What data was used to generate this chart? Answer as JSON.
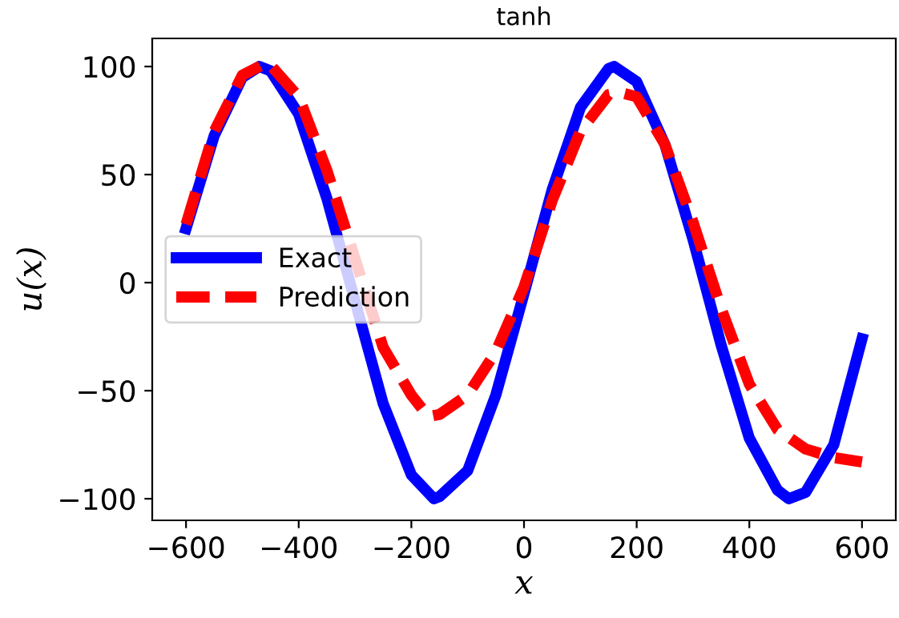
{
  "chart_data": {
    "type": "line",
    "title": "tanh",
    "xlabel": "x",
    "ylabel": "u(x)",
    "xlim": [
      -660,
      660
    ],
    "xticks": [
      -600,
      -400,
      -200,
      0,
      200,
      400,
      600
    ],
    "ylim": [
      -110,
      113
    ],
    "yticks": [
      -100,
      -50,
      0,
      50,
      100
    ],
    "grid": false,
    "legend": "center left",
    "series": [
      {
        "name": "Exact",
        "color": "#0000ff",
        "line_style": "solid",
        "x": [
          -600,
          -550,
          -500,
          -470,
          -450,
          -400,
          -350,
          -250,
          -200,
          -160,
          -150,
          -100,
          -50,
          0,
          50,
          100,
          150,
          160,
          200,
          250,
          300,
          350,
          400,
          450,
          470,
          500,
          550,
          600
        ],
        "values": [
          25,
          68,
          95,
          100,
          98,
          78,
          39,
          -56,
          -89,
          -100,
          -99,
          -87,
          -52,
          -5,
          43,
          81,
          99,
          100,
          93,
          64,
          20,
          -29,
          -72,
          -96,
          -100,
          -97,
          -75,
          -26
        ]
      },
      {
        "name": "Prediction",
        "color": "#ff0000",
        "line_style": "dashed",
        "x": [
          -600,
          -550,
          -500,
          -455,
          -400,
          -350,
          -250,
          -200,
          -170,
          -150,
          -100,
          -50,
          0,
          50,
          100,
          150,
          170,
          200,
          250,
          300,
          350,
          400,
          450,
          500,
          550,
          600
        ],
        "values": [
          27,
          70,
          96,
          102,
          86,
          52,
          -30,
          -52,
          -62,
          -61,
          -52,
          -32,
          -2,
          38,
          70,
          87,
          88,
          86,
          64,
          28,
          -12,
          -47,
          -68,
          -77,
          -81,
          -83
        ]
      }
    ]
  }
}
